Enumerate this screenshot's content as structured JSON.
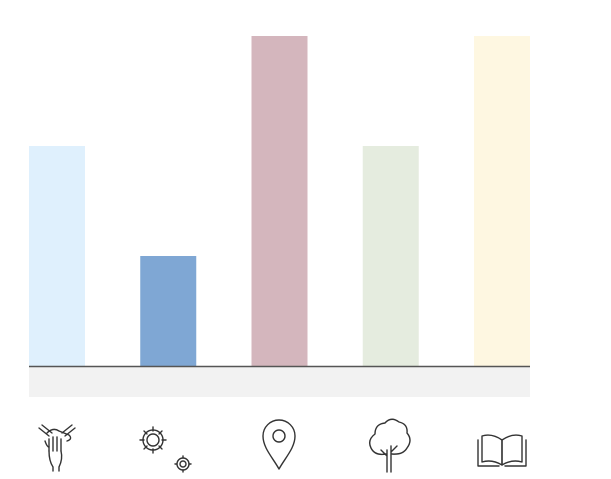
{
  "chart_data": {
    "type": "bar",
    "categories": [
      "hands-icon",
      "gears-icon",
      "location-pin-icon",
      "tree-icon",
      "open-book-icon"
    ],
    "values": [
      2,
      1,
      3,
      2,
      3
    ],
    "ylim": [
      0,
      3
    ],
    "colors": [
      "#dff0fd",
      "#7fa7d4",
      "#d4b6bd",
      "#e5ecdf",
      "#fef7e1"
    ],
    "baseline_color": "#555555",
    "band_color": "#f2f2f2",
    "grid": false,
    "legend": "none"
  }
}
